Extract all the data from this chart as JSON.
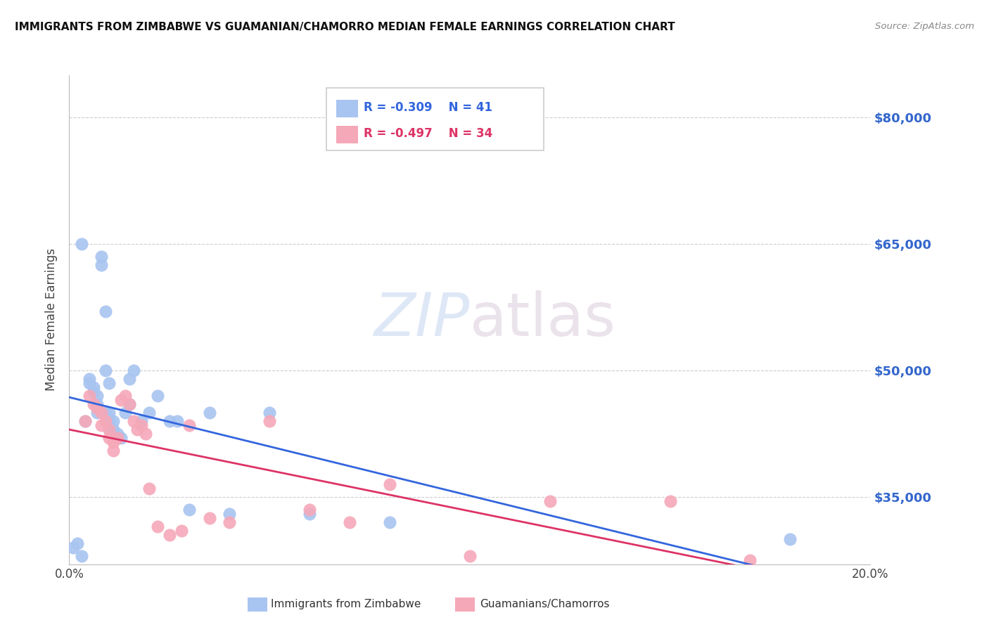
{
  "title": "IMMIGRANTS FROM ZIMBABWE VS GUAMANIAN/CHAMORRO MEDIAN FEMALE EARNINGS CORRELATION CHART",
  "source": "Source: ZipAtlas.com",
  "ylabel": "Median Female Earnings",
  "xlim": [
    0.0,
    0.2
  ],
  "ylim": [
    27000,
    85000
  ],
  "xticks": [
    0.0,
    0.2
  ],
  "xtick_labels": [
    "0.0%",
    "20.0%"
  ],
  "yticks": [
    35000,
    50000,
    65000,
    80000
  ],
  "right_ytick_labels": [
    "$35,000",
    "$50,000",
    "$65,000",
    "$80,000"
  ],
  "blue_R": -0.309,
  "blue_N": 41,
  "pink_R": -0.497,
  "pink_N": 34,
  "blue_color": "#a8c4f0",
  "pink_color": "#f5a8b8",
  "blue_line_color": "#3366dd",
  "pink_line_color": "#dd3366",
  "legend_label_blue": "Immigrants from Zimbabwe",
  "legend_label_pink": "Guamanians/Chamorros",
  "watermark_zip": "ZIP",
  "watermark_atlas": "atlas",
  "background_color": "#ffffff",
  "blue_x": [
    0.001,
    0.002,
    0.003,
    0.004,
    0.005,
    0.005,
    0.006,
    0.006,
    0.007,
    0.007,
    0.007,
    0.008,
    0.008,
    0.009,
    0.009,
    0.009,
    0.01,
    0.01,
    0.01,
    0.01,
    0.011,
    0.011,
    0.012,
    0.013,
    0.014,
    0.015,
    0.015,
    0.016,
    0.018,
    0.02,
    0.022,
    0.025,
    0.027,
    0.03,
    0.035,
    0.04,
    0.05,
    0.06,
    0.08,
    0.003,
    0.18
  ],
  "blue_y": [
    29000,
    29500,
    28000,
    44000,
    49000,
    48500,
    48000,
    47500,
    47000,
    46000,
    45000,
    63500,
    62500,
    57000,
    50000,
    45000,
    48500,
    45000,
    44000,
    43000,
    44000,
    43000,
    42500,
    42000,
    45000,
    46000,
    49000,
    50000,
    44000,
    45000,
    47000,
    44000,
    44000,
    33500,
    45000,
    33000,
    45000,
    33000,
    32000,
    65000,
    30000
  ],
  "pink_x": [
    0.004,
    0.005,
    0.006,
    0.007,
    0.008,
    0.008,
    0.009,
    0.01,
    0.01,
    0.011,
    0.011,
    0.012,
    0.013,
    0.014,
    0.015,
    0.016,
    0.017,
    0.018,
    0.019,
    0.02,
    0.022,
    0.025,
    0.028,
    0.03,
    0.035,
    0.04,
    0.05,
    0.06,
    0.07,
    0.08,
    0.1,
    0.12,
    0.15,
    0.17
  ],
  "pink_y": [
    44000,
    47000,
    46000,
    45500,
    45000,
    43500,
    44000,
    43000,
    42000,
    41500,
    40500,
    42000,
    46500,
    47000,
    46000,
    44000,
    43000,
    43500,
    42500,
    36000,
    31500,
    30500,
    31000,
    43500,
    32500,
    32000,
    44000,
    33500,
    32000,
    36500,
    28000,
    34500,
    34500,
    27500
  ]
}
